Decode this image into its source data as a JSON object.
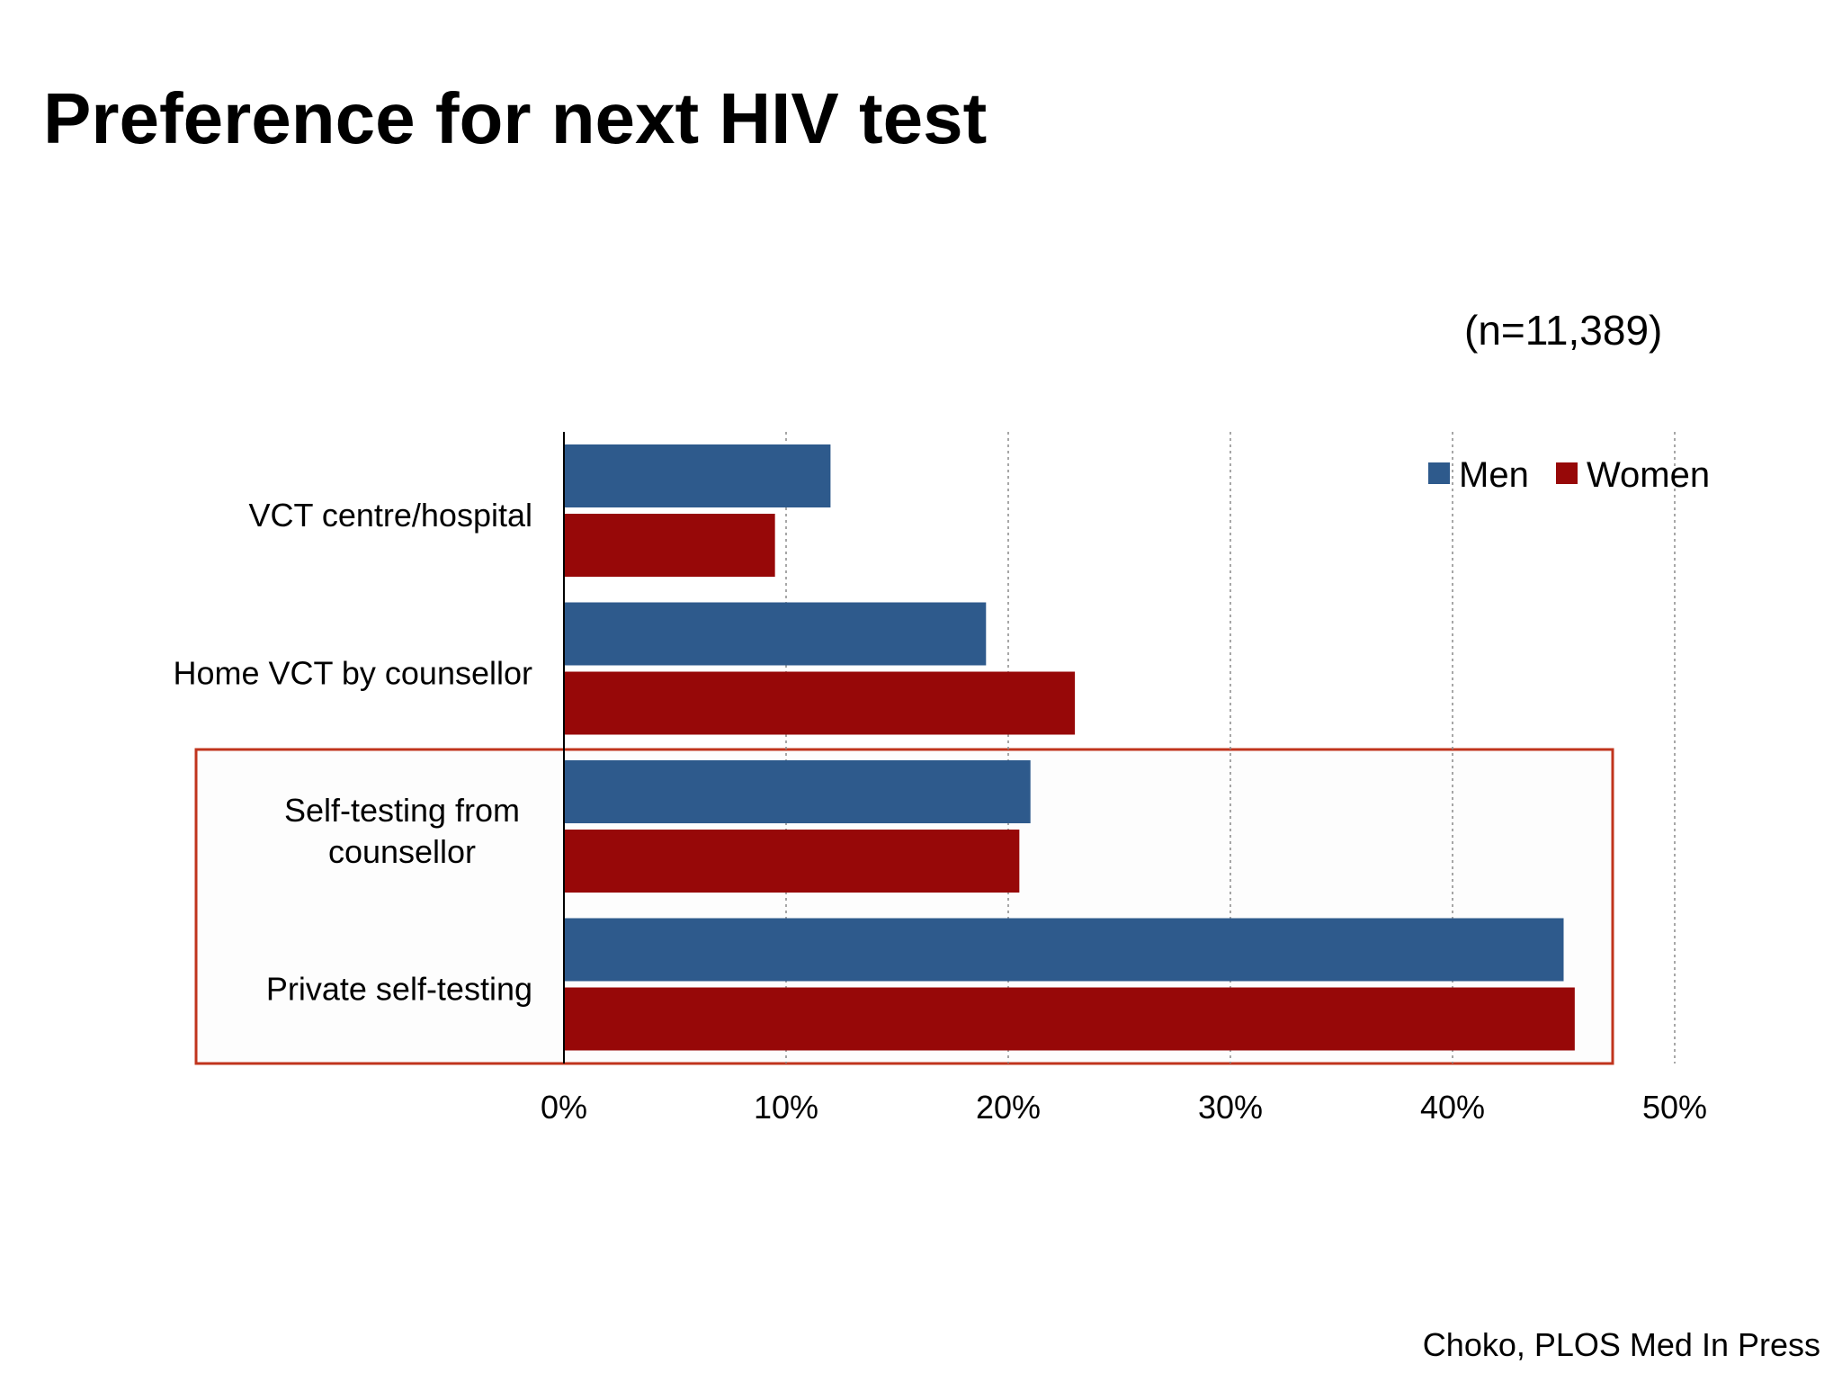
{
  "slide": {
    "title": "Preference for next HIV test",
    "sample_size": "(n=11,389)",
    "source": "Choko, PLOS Med In Press"
  },
  "colors": {
    "men": "#2e5a8c",
    "women": "#970808",
    "highlight_box": "#c0341d"
  },
  "chart_data": {
    "type": "bar",
    "orientation": "horizontal",
    "categories": [
      "VCT centre/hospital",
      "Home VCT by counsellor",
      "Self-testing from counsellor",
      "Private self-testing"
    ],
    "category_label_lines": [
      [
        "VCT centre/hospital"
      ],
      [
        "Home VCT by counsellor"
      ],
      [
        "Self-testing from",
        "counsellor"
      ],
      [
        "Private self-testing"
      ]
    ],
    "series": [
      {
        "name": "Men",
        "values": [
          12.0,
          19.0,
          21.0,
          45.0
        ]
      },
      {
        "name": "Women",
        "values": [
          9.5,
          23.0,
          20.5,
          45.5
        ]
      }
    ],
    "xlim": [
      0,
      50
    ],
    "x_ticks": [
      0,
      10,
      20,
      30,
      40,
      50
    ],
    "x_tick_labels": [
      "0%",
      "10%",
      "20%",
      "30%",
      "40%",
      "50%"
    ],
    "xlabel": "",
    "ylabel": "",
    "grid": "vertical dotted",
    "legend": {
      "position": "top-right",
      "entries": [
        "Men",
        "Women"
      ]
    },
    "highlighted_categories": [
      "Self-testing from counsellor",
      "Private self-testing"
    ]
  }
}
